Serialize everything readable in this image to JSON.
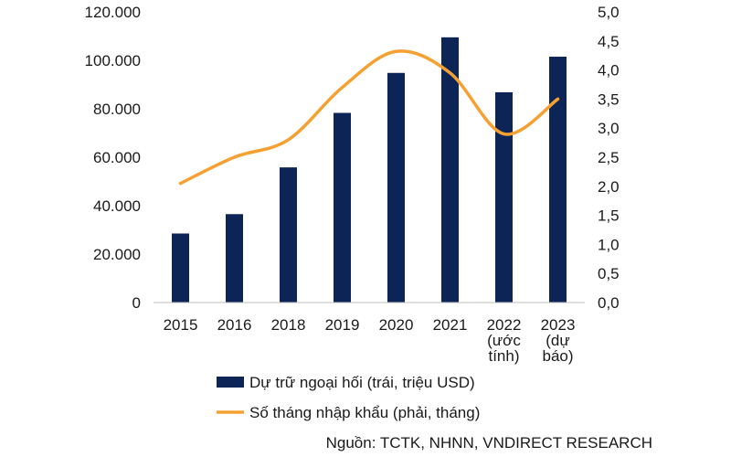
{
  "chart_data": {
    "type": "bar",
    "categories": [
      [
        "2015"
      ],
      [
        "2016"
      ],
      [
        "2018"
      ],
      [
        "2019"
      ],
      [
        "2020"
      ],
      [
        "2021"
      ],
      [
        "2022",
        "(ước",
        "tính)"
      ],
      [
        "2023",
        "(dự",
        "báo)"
      ]
    ],
    "series": [
      {
        "name": "Dự trữ ngoại hối (trái, triệu USD)",
        "type": "bar",
        "axis": "left",
        "color": "#0d2456",
        "values": [
          28500,
          36500,
          55800,
          78300,
          94800,
          109500,
          86800,
          101500
        ]
      },
      {
        "name": "Số tháng nhập khẩu (phải, tháng)",
        "type": "line",
        "axis": "right",
        "color": "#f5a030",
        "smooth": true,
        "values": [
          2.05,
          2.5,
          2.8,
          3.7,
          4.32,
          3.95,
          2.9,
          3.5
        ]
      }
    ],
    "y_left": {
      "ylim": [
        0,
        120000
      ],
      "ticks": [
        "0",
        "20.000",
        "40.000",
        "60.000",
        "80.000",
        "100.000",
        "120.000"
      ]
    },
    "y_right": {
      "ylim": [
        0,
        5
      ],
      "ticks": [
        "0,0",
        "0,5",
        "1,0",
        "1,5",
        "2,0",
        "2,5",
        "3,0",
        "3,5",
        "4,0",
        "4,5",
        "5,0"
      ]
    },
    "grid": false,
    "legend": "bottom"
  },
  "source": "Nguồn: TCTK, NHNN, VNDIRECT RESEARCH"
}
